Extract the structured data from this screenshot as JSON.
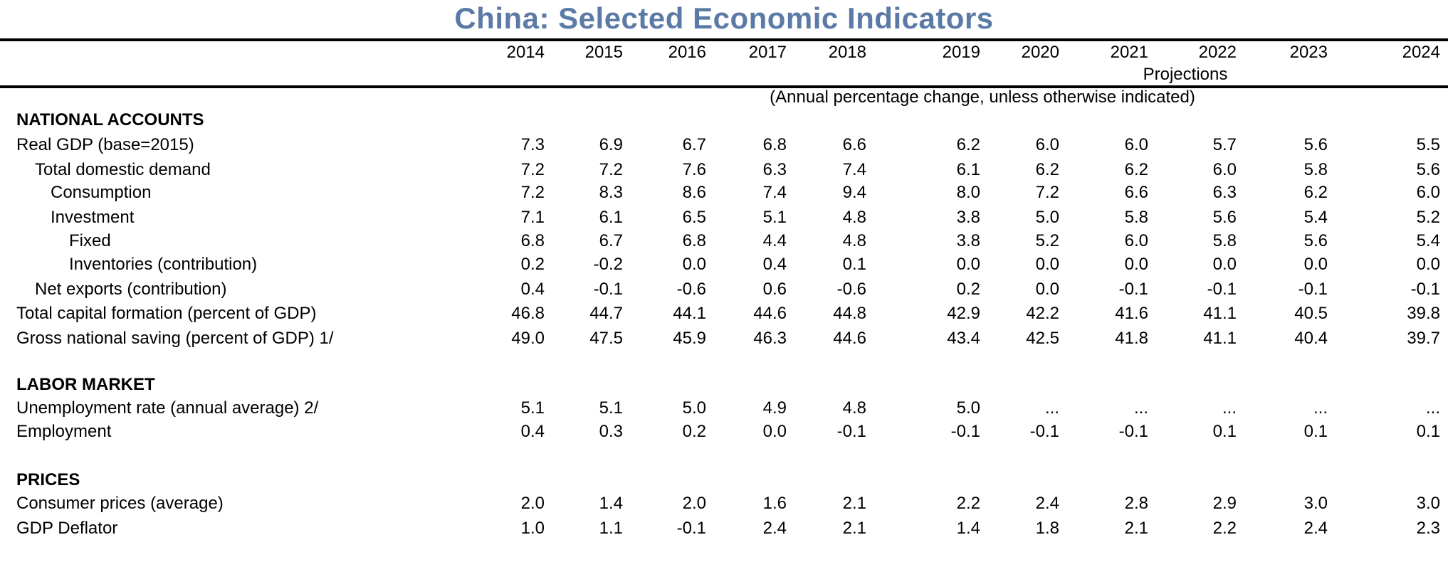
{
  "title": "China: Selected  Economic Indicators",
  "colors": {
    "title": "#5b7ba6",
    "rule": "#000000",
    "text": "#000000"
  },
  "header": {
    "years": [
      "2014",
      "2015",
      "2016",
      "2017",
      "2018",
      "2019",
      "2020",
      "2021",
      "2022",
      "2023",
      "2024"
    ],
    "projections_label": "Projections",
    "units_note": "(Annual percentage change, unless otherwise indicated)"
  },
  "sections": [
    {
      "title": "NATIONAL ACCOUNTS",
      "rows": [
        {
          "label": "Real GDP (base=2015)",
          "indent": 0,
          "values": [
            "7.3",
            "6.9",
            "6.7",
            "6.8",
            "6.6",
            "6.2",
            "6.0",
            "6.0",
            "5.7",
            "5.6",
            "5.5"
          ]
        },
        {
          "label": "Total domestic demand",
          "indent": 1,
          "values": [
            "7.2",
            "7.2",
            "7.6",
            "6.3",
            "7.4",
            "6.1",
            "6.2",
            "6.2",
            "6.0",
            "5.8",
            "5.6"
          ]
        },
        {
          "label": "Consumption",
          "indent": 2,
          "values": [
            "7.2",
            "8.3",
            "8.6",
            "7.4",
            "9.4",
            "8.0",
            "7.2",
            "6.6",
            "6.3",
            "6.2",
            "6.0"
          ]
        },
        {
          "label": "Investment",
          "indent": 2,
          "values": [
            "7.1",
            "6.1",
            "6.5",
            "5.1",
            "4.8",
            "3.8",
            "5.0",
            "5.8",
            "5.6",
            "5.4",
            "5.2"
          ]
        },
        {
          "label": "Fixed",
          "indent": 3,
          "values": [
            "6.8",
            "6.7",
            "6.8",
            "4.4",
            "4.8",
            "3.8",
            "5.2",
            "6.0",
            "5.8",
            "5.6",
            "5.4"
          ]
        },
        {
          "label": "Inventories (contribution)",
          "indent": 3,
          "values": [
            "0.2",
            "-0.2",
            "0.0",
            "0.4",
            "0.1",
            "0.0",
            "0.0",
            "0.0",
            "0.0",
            "0.0",
            "0.0"
          ]
        },
        {
          "label": "Net exports (contribution)",
          "indent": 1,
          "values": [
            "0.4",
            "-0.1",
            "-0.6",
            "0.6",
            "-0.6",
            "0.2",
            "0.0",
            "-0.1",
            "-0.1",
            "-0.1",
            "-0.1"
          ]
        },
        {
          "label": "Total capital formation (percent of GDP)",
          "indent": 0,
          "values": [
            "46.8",
            "44.7",
            "44.1",
            "44.6",
            "44.8",
            "42.9",
            "42.2",
            "41.6",
            "41.1",
            "40.5",
            "39.8"
          ]
        },
        {
          "label": "Gross national saving (percent of GDP) 1/",
          "indent": 0,
          "values": [
            "49.0",
            "47.5",
            "45.9",
            "46.3",
            "44.6",
            "43.4",
            "42.5",
            "41.8",
            "41.1",
            "40.4",
            "39.7"
          ]
        }
      ]
    },
    {
      "title": "LABOR MARKET",
      "rows": [
        {
          "label": "Unemployment rate (annual average) 2/",
          "indent": 0,
          "values": [
            "5.1",
            "5.1",
            "5.0",
            "4.9",
            "4.8",
            "5.0",
            "...",
            "...",
            "...",
            "...",
            "..."
          ]
        },
        {
          "label": "Employment",
          "indent": 0,
          "values": [
            "0.4",
            "0.3",
            "0.2",
            "0.0",
            "-0.1",
            "-0.1",
            "-0.1",
            "-0.1",
            "0.1",
            "0.1",
            "0.1"
          ]
        }
      ]
    },
    {
      "title": "PRICES",
      "rows": [
        {
          "label": "Consumer prices (average)",
          "indent": 0,
          "values": [
            "2.0",
            "1.4",
            "2.0",
            "1.6",
            "2.1",
            "2.2",
            "2.4",
            "2.8",
            "2.9",
            "3.0",
            "3.0"
          ]
        },
        {
          "label": "GDP Deflator",
          "indent": 0,
          "values": [
            "1.0",
            "1.1",
            "-0.1",
            "2.4",
            "2.1",
            "1.4",
            "1.8",
            "2.1",
            "2.2",
            "2.4",
            "2.3"
          ]
        }
      ]
    }
  ]
}
